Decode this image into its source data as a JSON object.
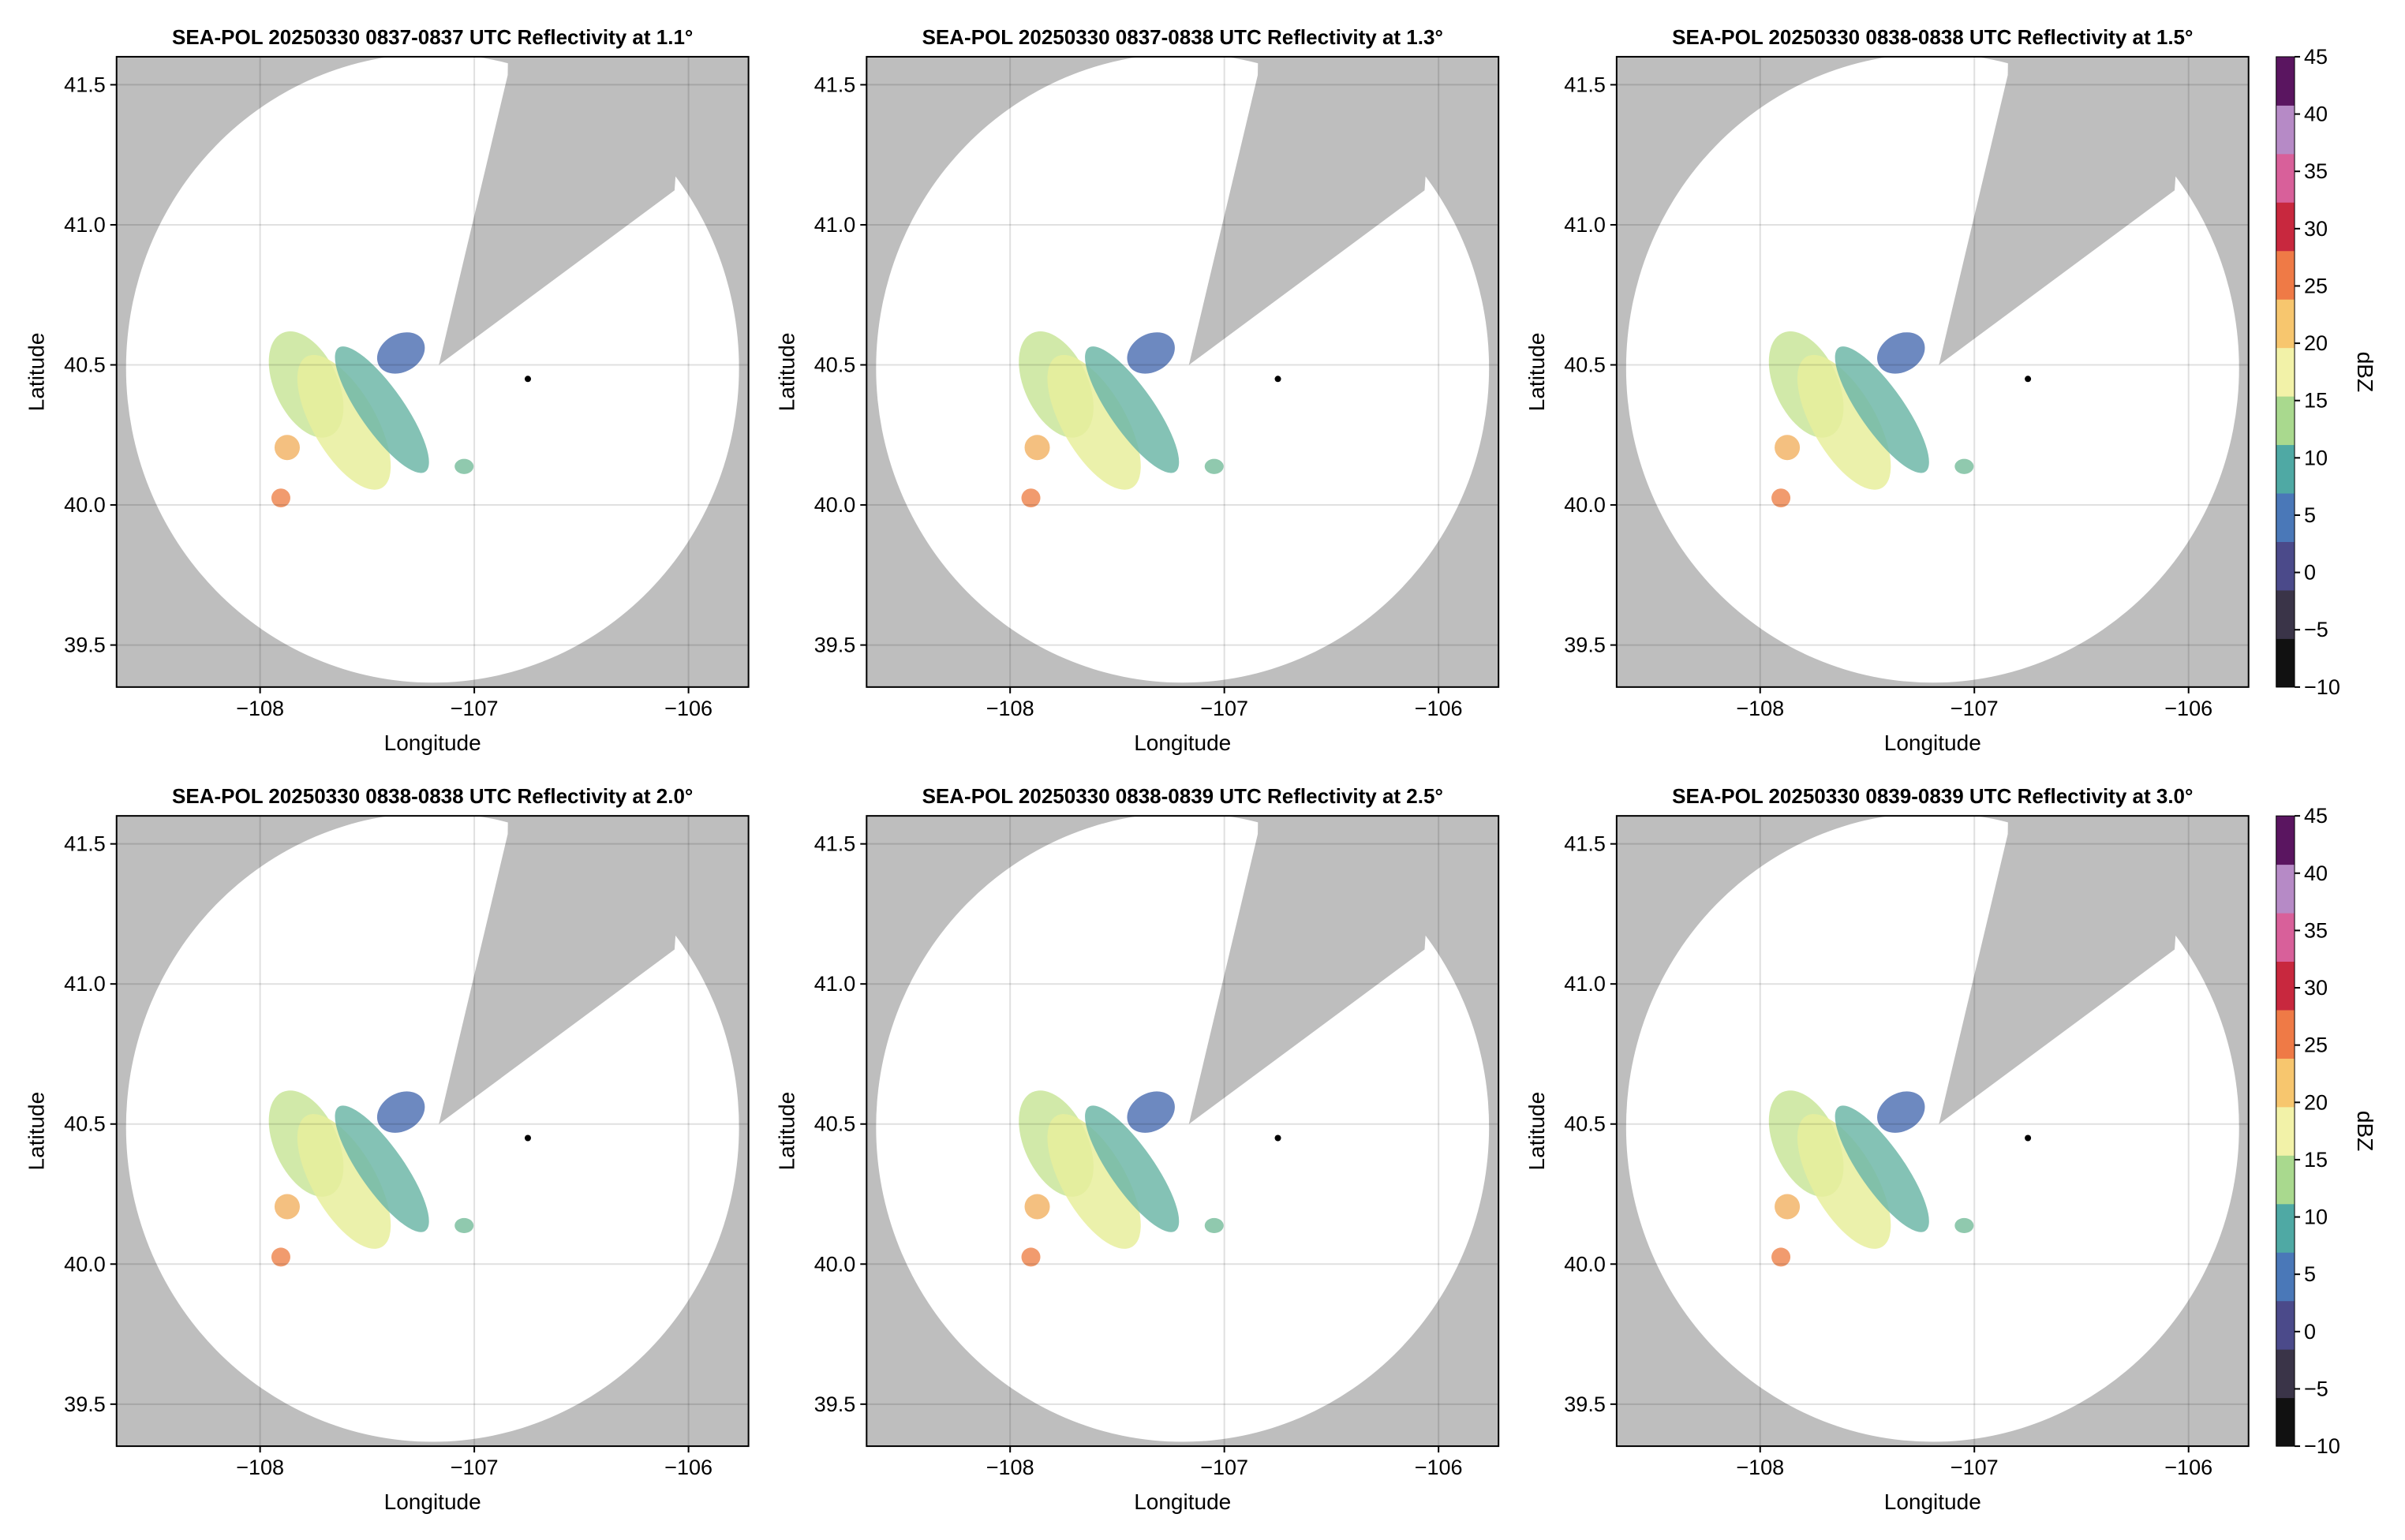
{
  "chart_data": [
    {
      "type": "ppi",
      "title": "SEA-POL 20250330 0837-0837 UTC Reflectivity at 1.1°",
      "xlabel": "Longitude",
      "ylabel": "Latitude",
      "xlim": [
        -108.67,
        -105.72
      ],
      "ylim": [
        39.35,
        41.6
      ],
      "xticks": [
        {
          "value": -108,
          "label": "−108"
        },
        {
          "value": -107,
          "label": "−107"
        },
        {
          "value": -106,
          "label": "−106"
        }
      ],
      "yticks": [
        39.5,
        {
          "value": 40,
          "label": "40.0"
        },
        40.5,
        {
          "value": 41,
          "label": "41.0"
        },
        41.5
      ],
      "grid": true,
      "x": [
        -106.75
      ],
      "y": [
        40.45
      ]
    },
    {
      "type": "ppi",
      "title": "SEA-POL 20250330 0837-0838 UTC Reflectivity at 1.3°",
      "xlabel": "Longitude",
      "ylabel": "Latitude",
      "xlim": [
        -108.67,
        -105.72
      ],
      "ylim": [
        39.35,
        41.6
      ],
      "xticks": [
        {
          "value": -108,
          "label": "−108"
        },
        {
          "value": -107,
          "label": "−107"
        },
        {
          "value": -106,
          "label": "−106"
        }
      ],
      "yticks": [
        39.5,
        {
          "value": 40,
          "label": "40.0"
        },
        40.5,
        {
          "value": 41,
          "label": "41.0"
        },
        41.5
      ],
      "grid": true,
      "x": [
        -106.75
      ],
      "y": [
        40.45
      ]
    },
    {
      "type": "ppi",
      "title": "SEA-POL 20250330 0838-0838 UTC Reflectivity at 1.5°",
      "xlabel": "Longitude",
      "ylabel": "Latitude",
      "xlim": [
        -108.67,
        -105.72
      ],
      "ylim": [
        39.35,
        41.6
      ],
      "xticks": [
        {
          "value": -108,
          "label": "−108"
        },
        {
          "value": -107,
          "label": "−107"
        },
        {
          "value": -106,
          "label": "−106"
        }
      ],
      "yticks": [
        39.5,
        {
          "value": 40,
          "label": "40.0"
        },
        40.5,
        {
          "value": 41,
          "label": "41.0"
        },
        41.5
      ],
      "grid": true,
      "x": [
        -106.75
      ],
      "y": [
        40.45
      ],
      "colorbar": {
        "label": "dBZ",
        "lim": [
          -10,
          45
        ],
        "ticks": [
          {
            "value": -10,
            "label": "−10"
          },
          {
            "value": -5,
            "label": "−5"
          },
          0,
          5,
          10,
          15,
          20,
          25,
          30,
          35,
          40,
          45
        ],
        "colors": [
          "#111111",
          "#3a3448",
          "#4b4a8a",
          "#4a78b8",
          "#4fa9a4",
          "#a9d98e",
          "#f2f2a8",
          "#f7c66e",
          "#ef7a46",
          "#c8283e",
          "#d8609a",
          "#b68ac6",
          "#5a1560"
        ]
      }
    },
    {
      "type": "ppi",
      "title": "SEA-POL 20250330 0838-0838 UTC Reflectivity at 2.0°",
      "xlabel": "Longitude",
      "ylabel": "Latitude",
      "xlim": [
        -108.67,
        -105.72
      ],
      "ylim": [
        39.35,
        41.6
      ],
      "xticks": [
        {
          "value": -108,
          "label": "−108"
        },
        {
          "value": -107,
          "label": "−107"
        },
        {
          "value": -106,
          "label": "−106"
        }
      ],
      "yticks": [
        39.5,
        {
          "value": 40,
          "label": "40.0"
        },
        40.5,
        {
          "value": 41,
          "label": "41.0"
        },
        41.5
      ],
      "grid": true,
      "x": [
        -106.75
      ],
      "y": [
        40.45
      ]
    },
    {
      "type": "ppi",
      "title": "SEA-POL 20250330 0838-0839 UTC Reflectivity at 2.5°",
      "xlabel": "Longitude",
      "ylabel": "Latitude",
      "xlim": [
        -108.67,
        -105.72
      ],
      "ylim": [
        39.35,
        41.6
      ],
      "xticks": [
        {
          "value": -108,
          "label": "−108"
        },
        {
          "value": -107,
          "label": "−107"
        },
        {
          "value": -106,
          "label": "−106"
        }
      ],
      "yticks": [
        39.5,
        {
          "value": 40,
          "label": "40.0"
        },
        40.5,
        {
          "value": 41,
          "label": "41.0"
        },
        41.5
      ],
      "grid": true,
      "x": [
        -106.75
      ],
      "y": [
        40.45
      ]
    },
    {
      "type": "ppi",
      "title": "SEA-POL 20250330 0839-0839 UTC Reflectivity at 3.0°",
      "xlabel": "Longitude",
      "ylabel": "Latitude",
      "xlim": [
        -108.67,
        -105.72
      ],
      "ylim": [
        39.35,
        41.6
      ],
      "xticks": [
        {
          "value": -108,
          "label": "−108"
        },
        {
          "value": -107,
          "label": "−107"
        },
        {
          "value": -106,
          "label": "−106"
        }
      ],
      "yticks": [
        39.5,
        {
          "value": 40,
          "label": "40.0"
        },
        40.5,
        {
          "value": 41,
          "label": "41.0"
        },
        41.5
      ],
      "grid": true,
      "x": [
        -106.75
      ],
      "y": [
        40.45
      ],
      "colorbar": {
        "label": "dBZ",
        "lim": [
          -10,
          45
        ],
        "ticks": [
          {
            "value": -10,
            "label": "−10"
          },
          {
            "value": -5,
            "label": "−5"
          },
          0,
          5,
          10,
          15,
          20,
          25,
          30,
          35,
          40,
          45
        ],
        "colors": [
          "#111111",
          "#3a3448",
          "#4b4a8a",
          "#4a78b8",
          "#4fa9a4",
          "#a9d98e",
          "#f2f2a8",
          "#f7c66e",
          "#ef7a46",
          "#c8283e",
          "#d8609a",
          "#b68ac6",
          "#5a1560"
        ]
      }
    }
  ]
}
